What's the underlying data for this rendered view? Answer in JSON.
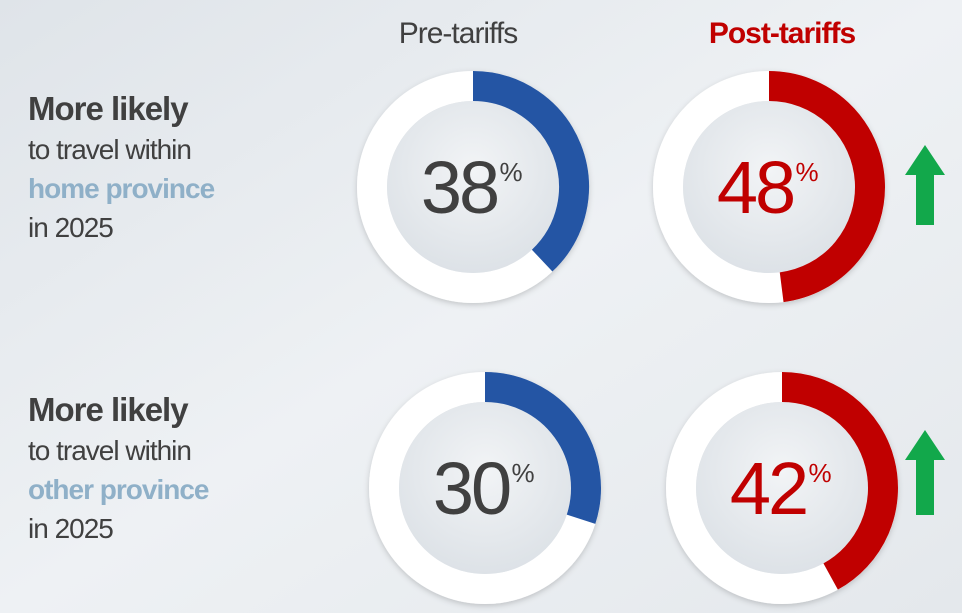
{
  "chart_data": {
    "type": "donut",
    "ylim": [
      0,
      100
    ],
    "unit": "%",
    "row_labels": [
      [
        "More likely",
        "to travel within",
        "home province",
        "in 2025"
      ],
      [
        "More likely",
        "to travel within",
        "other province",
        "in 2025"
      ]
    ],
    "series": [
      {
        "name": "Pre-tariffs",
        "color": "#2455a4",
        "text_color": "#404040",
        "values": [
          38,
          30
        ]
      },
      {
        "name": "Post-tariffs",
        "color": "#c00000",
        "text_color": "#c00000",
        "values": [
          48,
          42
        ]
      }
    ],
    "arrow_color": "#12a84b"
  }
}
